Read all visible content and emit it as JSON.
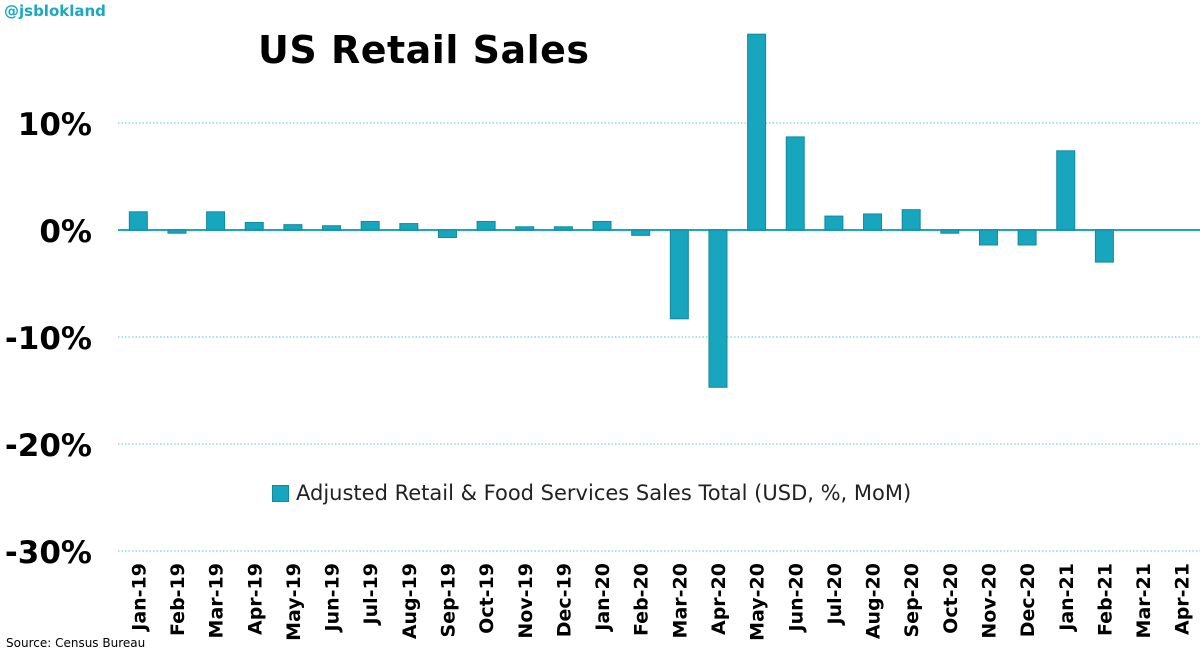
{
  "handle": "@jsblokland",
  "source": "Source: Census Bureau",
  "colors": {
    "bar": "#17a6bd",
    "bar_edge": "#118a9e",
    "grid": "#55c3d3",
    "zero_line": "#1aa8c2"
  },
  "chart_data": {
    "type": "bar",
    "title": "US Retail Sales",
    "categories": [
      "Jan-19",
      "Feb-19",
      "Mar-19",
      "Apr-19",
      "May-19",
      "Jun-19",
      "Jul-19",
      "Aug-19",
      "Sep-19",
      "Oct-19",
      "Nov-19",
      "Dec-19",
      "Jan-20",
      "Feb-20",
      "Mar-20",
      "Apr-20",
      "May-20",
      "Jun-20",
      "Jul-20",
      "Aug-20",
      "Sep-20",
      "Oct-20",
      "Nov-20",
      "Dec-20",
      "Jan-21",
      "Feb-21",
      "Mar-21",
      "Apr-21"
    ],
    "series": [
      {
        "name": "Adjusted Retail & Food Services Sales Total (USD, %, MoM)",
        "values": [
          1.7,
          -0.3,
          1.7,
          0.7,
          0.5,
          0.4,
          0.8,
          0.6,
          -0.7,
          0.8,
          0.3,
          0.3,
          0.8,
          -0.5,
          -8.3,
          -14.7,
          18.3,
          8.7,
          1.3,
          1.5,
          1.9,
          -0.3,
          -1.4,
          -1.4,
          7.4,
          -3.0,
          null,
          null
        ]
      }
    ],
    "yticks": [
      "10%",
      "0%",
      "-10%",
      "-20%",
      "-30%"
    ],
    "ytick_values": [
      10,
      0,
      -10,
      -20,
      -30
    ],
    "ylim": [
      -30,
      20
    ],
    "xlabel": "",
    "ylabel": "",
    "grid": true,
    "legend": "inside-bottom-center"
  }
}
